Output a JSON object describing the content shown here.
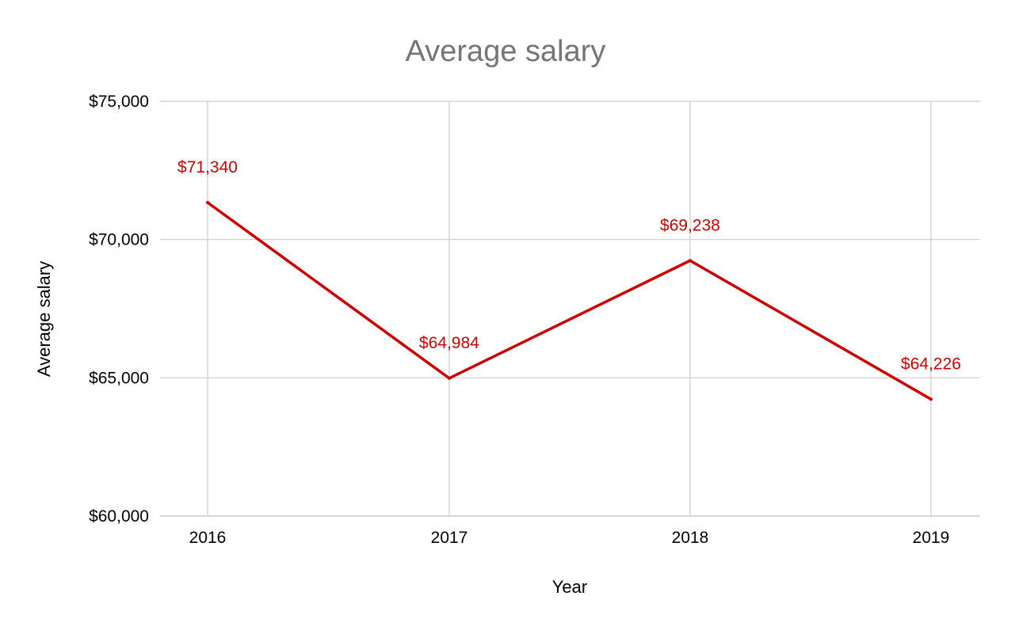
{
  "chart_data": {
    "type": "line",
    "title": "Average salary",
    "xlabel": "Year",
    "ylabel": "Average salary",
    "categories": [
      "2016",
      "2017",
      "2018",
      "2019"
    ],
    "series": [
      {
        "values": [
          71340,
          64984,
          69238,
          64226
        ],
        "data_labels": [
          "$71,340",
          "$64,984",
          "$69,238",
          "$64,226"
        ]
      }
    ],
    "ylim": [
      60000,
      75000
    ],
    "y_ticks": [
      60000,
      65000,
      70000,
      75000
    ],
    "y_tick_labels": [
      "$60,000",
      "$65,000",
      "$70,000",
      "$75,000"
    ],
    "grid": true,
    "legend": "none",
    "colors": {
      "line": "#cc0000",
      "data_label": "#cc0000",
      "grid": "#cccccc",
      "title": "#757575",
      "text": "#000000"
    }
  }
}
